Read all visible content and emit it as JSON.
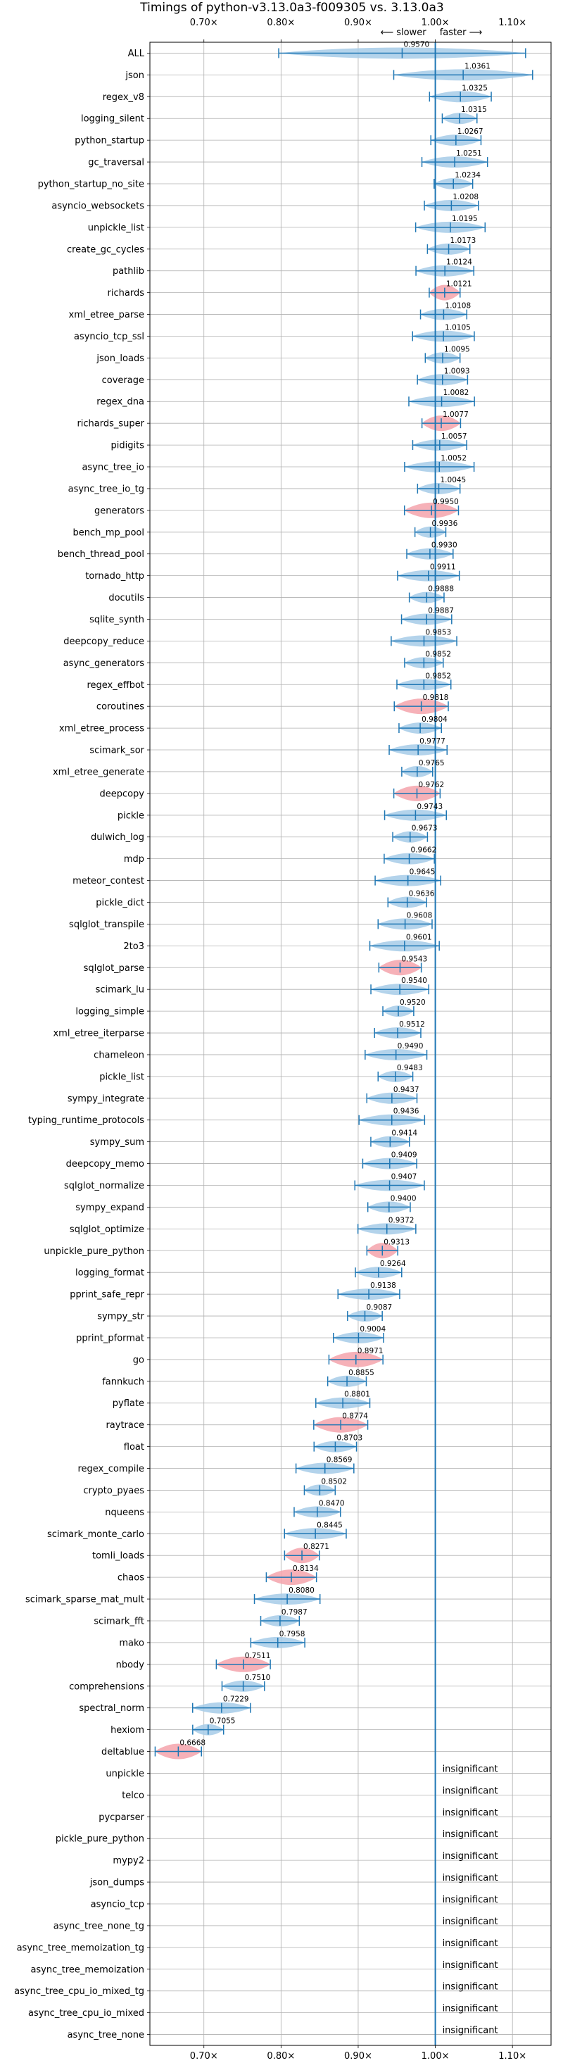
{
  "chart_data": {
    "type": "violin",
    "title": "Timings of python-v3.13.0a3-f009305 vs. 3.13.0a3",
    "direction_left": "⟵ slower",
    "direction_right": "faster ⟶",
    "xlim": [
      0.63,
      1.15
    ],
    "xticks": [
      0.7,
      0.8,
      0.9,
      1.0,
      1.1
    ],
    "xtick_labels": [
      "0.70×",
      "0.80×",
      "0.90×",
      "1.00×",
      "1.10×"
    ],
    "reference_line": 1.0,
    "grid": true,
    "colors": {
      "faster": "#a6cbe8",
      "slower": "#f4a3ac",
      "line": "#1f77b4"
    },
    "insignificant_label": "insignificant",
    "benchmarks": [
      {
        "name": "ALL",
        "value": 0.957
      },
      {
        "name": "json",
        "value": 1.0361
      },
      {
        "name": "regex_v8",
        "value": 1.0325
      },
      {
        "name": "logging_silent",
        "value": 1.0315
      },
      {
        "name": "python_startup",
        "value": 1.0267
      },
      {
        "name": "gc_traversal",
        "value": 1.0251
      },
      {
        "name": "python_startup_no_site",
        "value": 1.0234
      },
      {
        "name": "asyncio_websockets",
        "value": 1.0208
      },
      {
        "name": "unpickle_list",
        "value": 1.0195
      },
      {
        "name": "create_gc_cycles",
        "value": 1.0173
      },
      {
        "name": "pathlib",
        "value": 1.0124
      },
      {
        "name": "richards",
        "value": 1.0121
      },
      {
        "name": "xml_etree_parse",
        "value": 1.0108
      },
      {
        "name": "asyncio_tcp_ssl",
        "value": 1.0105
      },
      {
        "name": "json_loads",
        "value": 1.0095
      },
      {
        "name": "coverage",
        "value": 1.0093
      },
      {
        "name": "regex_dna",
        "value": 1.0082
      },
      {
        "name": "richards_super",
        "value": 1.0077
      },
      {
        "name": "pidigits",
        "value": 1.0057
      },
      {
        "name": "async_tree_io",
        "value": 1.0052
      },
      {
        "name": "async_tree_io_tg",
        "value": 1.0045
      },
      {
        "name": "generators",
        "value": 0.995
      },
      {
        "name": "bench_mp_pool",
        "value": 0.9936
      },
      {
        "name": "bench_thread_pool",
        "value": 0.993
      },
      {
        "name": "tornado_http",
        "value": 0.9911
      },
      {
        "name": "docutils",
        "value": 0.9888
      },
      {
        "name": "sqlite_synth",
        "value": 0.9887
      },
      {
        "name": "deepcopy_reduce",
        "value": 0.9853
      },
      {
        "name": "async_generators",
        "value": 0.9852
      },
      {
        "name": "regex_effbot",
        "value": 0.9852
      },
      {
        "name": "coroutines",
        "value": 0.9818
      },
      {
        "name": "xml_etree_process",
        "value": 0.9804
      },
      {
        "name": "scimark_sor",
        "value": 0.9777
      },
      {
        "name": "xml_etree_generate",
        "value": 0.9765
      },
      {
        "name": "deepcopy",
        "value": 0.9762
      },
      {
        "name": "pickle",
        "value": 0.9743
      },
      {
        "name": "dulwich_log",
        "value": 0.9673
      },
      {
        "name": "mdp",
        "value": 0.9662
      },
      {
        "name": "meteor_contest",
        "value": 0.9645
      },
      {
        "name": "pickle_dict",
        "value": 0.9636
      },
      {
        "name": "sqlglot_transpile",
        "value": 0.9608
      },
      {
        "name": "2to3",
        "value": 0.9601
      },
      {
        "name": "sqlglot_parse",
        "value": 0.9543
      },
      {
        "name": "scimark_lu",
        "value": 0.954
      },
      {
        "name": "logging_simple",
        "value": 0.952
      },
      {
        "name": "xml_etree_iterparse",
        "value": 0.9512
      },
      {
        "name": "chameleon",
        "value": 0.949
      },
      {
        "name": "pickle_list",
        "value": 0.9483
      },
      {
        "name": "sympy_integrate",
        "value": 0.9437
      },
      {
        "name": "typing_runtime_protocols",
        "value": 0.9436
      },
      {
        "name": "sympy_sum",
        "value": 0.9414
      },
      {
        "name": "deepcopy_memo",
        "value": 0.9409
      },
      {
        "name": "sqlglot_normalize",
        "value": 0.9407
      },
      {
        "name": "sympy_expand",
        "value": 0.94
      },
      {
        "name": "sqlglot_optimize",
        "value": 0.9372
      },
      {
        "name": "unpickle_pure_python",
        "value": 0.9313
      },
      {
        "name": "logging_format",
        "value": 0.9264
      },
      {
        "name": "pprint_safe_repr",
        "value": 0.9138
      },
      {
        "name": "sympy_str",
        "value": 0.9087
      },
      {
        "name": "pprint_pformat",
        "value": 0.9004
      },
      {
        "name": "go",
        "value": 0.8971
      },
      {
        "name": "fannkuch",
        "value": 0.8855
      },
      {
        "name": "pyflate",
        "value": 0.8801
      },
      {
        "name": "raytrace",
        "value": 0.8774
      },
      {
        "name": "float",
        "value": 0.8703
      },
      {
        "name": "regex_compile",
        "value": 0.8569
      },
      {
        "name": "crypto_pyaes",
        "value": 0.8502
      },
      {
        "name": "nqueens",
        "value": 0.847
      },
      {
        "name": "scimark_monte_carlo",
        "value": 0.8445
      },
      {
        "name": "tomli_loads",
        "value": 0.8271
      },
      {
        "name": "chaos",
        "value": 0.8134
      },
      {
        "name": "scimark_sparse_mat_mult",
        "value": 0.808
      },
      {
        "name": "scimark_fft",
        "value": 0.7987
      },
      {
        "name": "mako",
        "value": 0.7958
      },
      {
        "name": "nbody",
        "value": 0.7511
      },
      {
        "name": "comprehensions",
        "value": 0.751
      },
      {
        "name": "spectral_norm",
        "value": 0.7229
      },
      {
        "name": "hexiom",
        "value": 0.7055
      },
      {
        "name": "deltablue",
        "value": 0.6668
      },
      {
        "name": "unpickle",
        "value": null
      },
      {
        "name": "telco",
        "value": null
      },
      {
        "name": "pycparser",
        "value": null
      },
      {
        "name": "pickle_pure_python",
        "value": null
      },
      {
        "name": "mypy2",
        "value": null
      },
      {
        "name": "json_dumps",
        "value": null
      },
      {
        "name": "asyncio_tcp",
        "value": null
      },
      {
        "name": "async_tree_none_tg",
        "value": null
      },
      {
        "name": "async_tree_memoization_tg",
        "value": null
      },
      {
        "name": "async_tree_memoization",
        "value": null
      },
      {
        "name": "async_tree_cpu_io_mixed_tg",
        "value": null
      },
      {
        "name": "async_tree_cpu_io_mixed",
        "value": null
      },
      {
        "name": "async_tree_none",
        "value": null
      }
    ],
    "highlighted_slower": [
      "richards",
      "richards_super",
      "generators",
      "coroutines",
      "deepcopy",
      "sqlglot_parse",
      "unpickle_pure_python",
      "go",
      "raytrace",
      "tomli_loads",
      "chaos",
      "nbody",
      "deltablue"
    ]
  }
}
